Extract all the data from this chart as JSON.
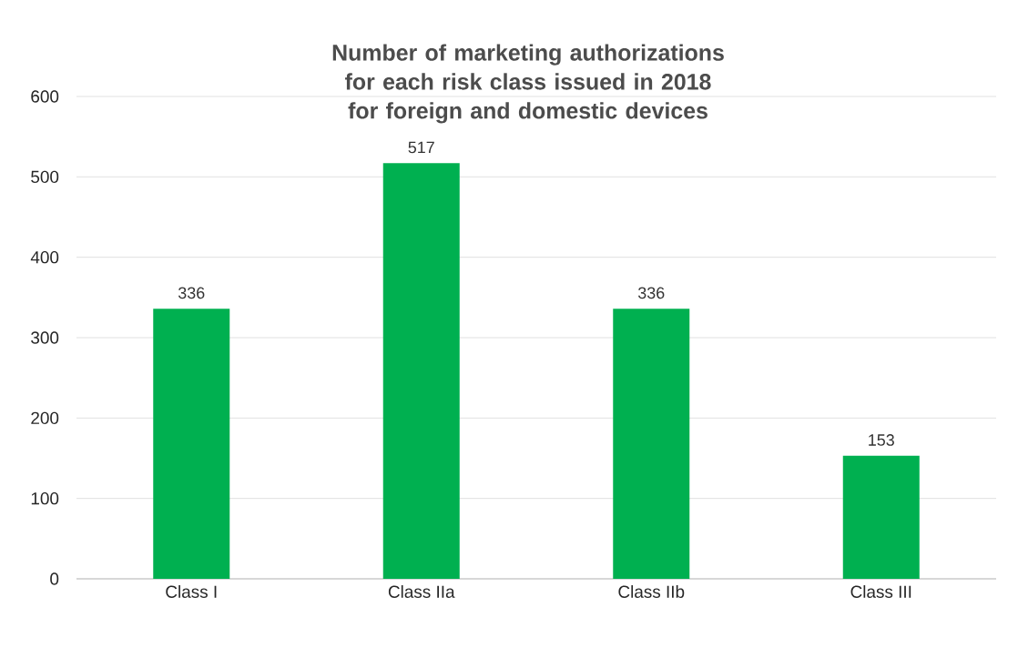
{
  "chart_data": {
    "type": "bar",
    "title": "Number of marketing authorizations for each risk class issued in 2018 for foreign and domestic devices",
    "categories": [
      "Class I",
      "Class IIa",
      "Class IIb",
      "Class III"
    ],
    "values": [
      336,
      517,
      336,
      153
    ],
    "color": "#00b050",
    "ylim": [
      0,
      600
    ],
    "yticks": [
      0,
      100,
      200,
      300,
      400,
      500,
      600
    ],
    "grid": "y",
    "data_labels": true
  }
}
